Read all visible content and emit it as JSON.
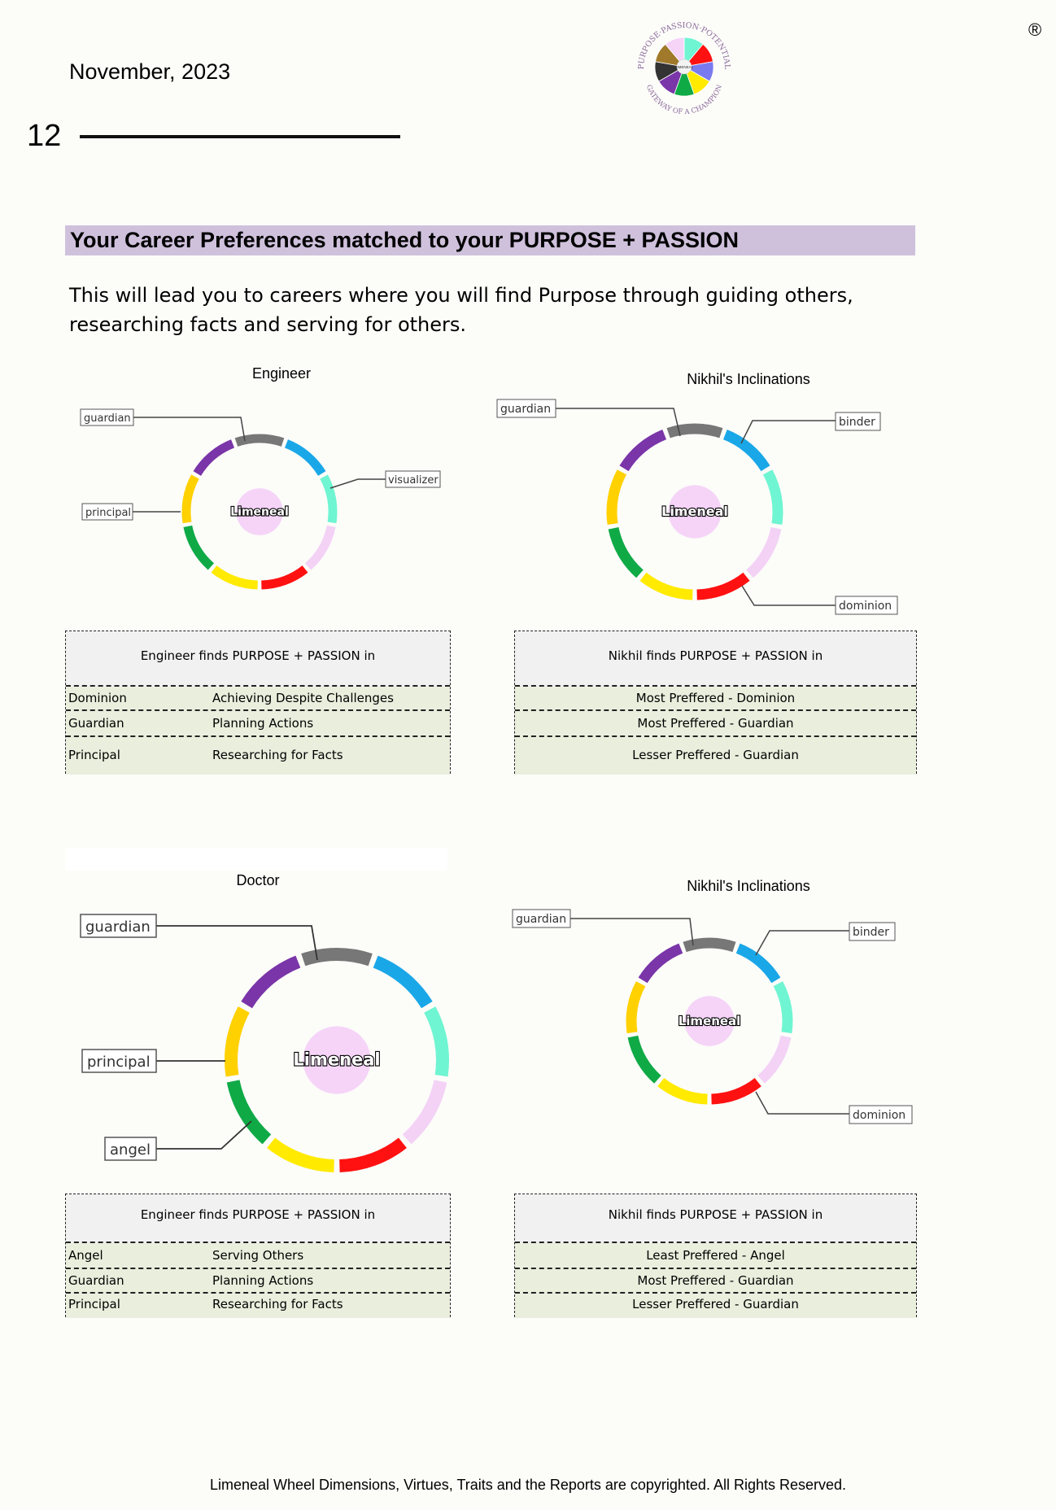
{
  "header": {
    "date": "November, 2023",
    "page_number": "12",
    "registered": "®"
  },
  "logo": {
    "center": "LIMENEAL",
    "arc_top": "PURPOSE·PASSION·POTENTIAL",
    "arc_bottom": "GATEWAY OF A CHAMPION"
  },
  "section": {
    "heading": "Your Career Preferences matched to your PURPOSE + PASSION",
    "intro": "This will lead you to careers where you will find Purpose through guiding others, researching facts and serving for others."
  },
  "wheel_center_label": "Limeneal",
  "charts": {
    "c1": {
      "title": "Engineer",
      "labels": {
        "guardian": "guardian",
        "principal": "principal",
        "visualizer": "visualizer"
      }
    },
    "c2": {
      "title": "Nikhil's Inclinations",
      "labels": {
        "guardian": "guardian",
        "binder": "binder",
        "dominion": "dominion"
      }
    },
    "c3": {
      "title": "Doctor",
      "labels": {
        "guardian": "guardian",
        "principal": "principal",
        "angel": "angel"
      }
    },
    "c4": {
      "title": "Nikhil's Inclinations",
      "labels": {
        "guardian": "guardian",
        "binder": "binder",
        "dominion": "dominion"
      }
    }
  },
  "tables": {
    "t1": {
      "header": "Engineer finds PURPOSE + PASSION in",
      "rows": [
        [
          "Dominion",
          "Achieving Despite Challenges"
        ],
        [
          "Guardian",
          "Planning Actions"
        ],
        [
          "Principal",
          "Researching for Facts"
        ]
      ]
    },
    "t2": {
      "header": "Nikhil finds PURPOSE + PASSION in",
      "rows": [
        "Most Preffered - Dominion",
        "Most Preffered - Guardian",
        "Lesser Preffered  - Guardian"
      ]
    },
    "t3": {
      "header": "Engineer finds PURPOSE + PASSION in",
      "rows": [
        [
          "Angel",
          "Serving Others"
        ],
        [
          "Guardian",
          "Planning Actions"
        ],
        [
          "Principal",
          "Researching for Facts"
        ]
      ]
    },
    "t4": {
      "header": "Nikhil finds PURPOSE + PASSION in",
      "rows": [
        "Least Preffered - Angel",
        "Most Preffered - Guardian",
        "Lesser Preffered  - Guardian"
      ]
    }
  },
  "wheel_colors": [
    "#777777",
    "#1aa7e8",
    "#6ff5d2",
    "#f3d2f6",
    "#ff1111",
    "#ffea00",
    "#0faa46",
    "#ffd100",
    "#7a35a8"
  ],
  "footer": "Limeneal Wheel Dimensions, Virtues, Traits and the Reports are copyrighted. All Rights Reserved."
}
